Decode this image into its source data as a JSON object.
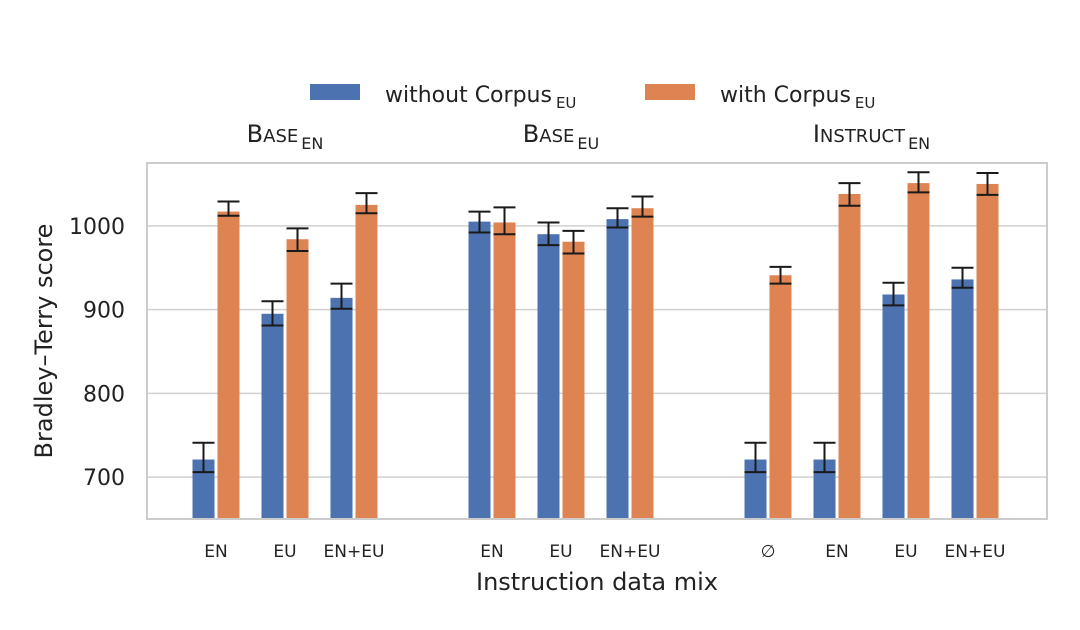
{
  "chart_data": {
    "type": "bar",
    "xlabel": "Instruction data mix",
    "ylabel": "Bradley–Terry score",
    "ylim": [
      650,
      1075
    ],
    "yticks": [
      700,
      800,
      900,
      1000
    ],
    "grid": true,
    "legend_position": "top-center",
    "colors": {
      "without": "#4c72b0",
      "with": "#dd8452"
    },
    "series": [
      {
        "key": "without",
        "name": "without Corpus",
        "subscript": "EU"
      },
      {
        "key": "with",
        "name": "with Corpus",
        "subscript": "EU"
      }
    ],
    "groups": [
      {
        "title": "Base",
        "title_subscript": "EN",
        "categories": [
          {
            "label": "EN",
            "without": {
              "value": 721,
              "lo": 706,
              "hi": 741
            },
            "with": {
              "value": 1017,
              "lo": 1012,
              "hi": 1029
            }
          },
          {
            "label": "EU",
            "without": {
              "value": 895,
              "lo": 881,
              "hi": 910
            },
            "with": {
              "value": 984,
              "lo": 970,
              "hi": 997
            }
          },
          {
            "label": "EN+EU",
            "without": {
              "value": 914,
              "lo": 901,
              "hi": 931
            },
            "with": {
              "value": 1025,
              "lo": 1015,
              "hi": 1039
            }
          }
        ]
      },
      {
        "title": "Base",
        "title_subscript": "EU",
        "categories": [
          {
            "label": "EN",
            "without": {
              "value": 1005,
              "lo": 992,
              "hi": 1017
            },
            "with": {
              "value": 1004,
              "lo": 990,
              "hi": 1022
            }
          },
          {
            "label": "EU",
            "without": {
              "value": 990,
              "lo": 977,
              "hi": 1004
            },
            "with": {
              "value": 981,
              "lo": 967,
              "hi": 994
            }
          },
          {
            "label": "EN+EU",
            "without": {
              "value": 1008,
              "lo": 998,
              "hi": 1021
            },
            "with": {
              "value": 1021,
              "lo": 1011,
              "hi": 1035
            }
          }
        ]
      },
      {
        "title": "Instruct",
        "title_subscript": "EN",
        "categories": [
          {
            "label": "∅",
            "without": {
              "value": 721,
              "lo": 706,
              "hi": 741
            },
            "with": {
              "value": 941,
              "lo": 931,
              "hi": 951
            }
          },
          {
            "label": "EN",
            "without": {
              "value": 721,
              "lo": 706,
              "hi": 741
            },
            "with": {
              "value": 1038,
              "lo": 1024,
              "hi": 1051
            }
          },
          {
            "label": "EU",
            "without": {
              "value": 918,
              "lo": 905,
              "hi": 932
            },
            "with": {
              "value": 1051,
              "lo": 1040,
              "hi": 1064
            }
          },
          {
            "label": "EN+EU",
            "without": {
              "value": 936,
              "lo": 926,
              "hi": 950
            },
            "with": {
              "value": 1050,
              "lo": 1037,
              "hi": 1063
            }
          }
        ]
      }
    ]
  }
}
